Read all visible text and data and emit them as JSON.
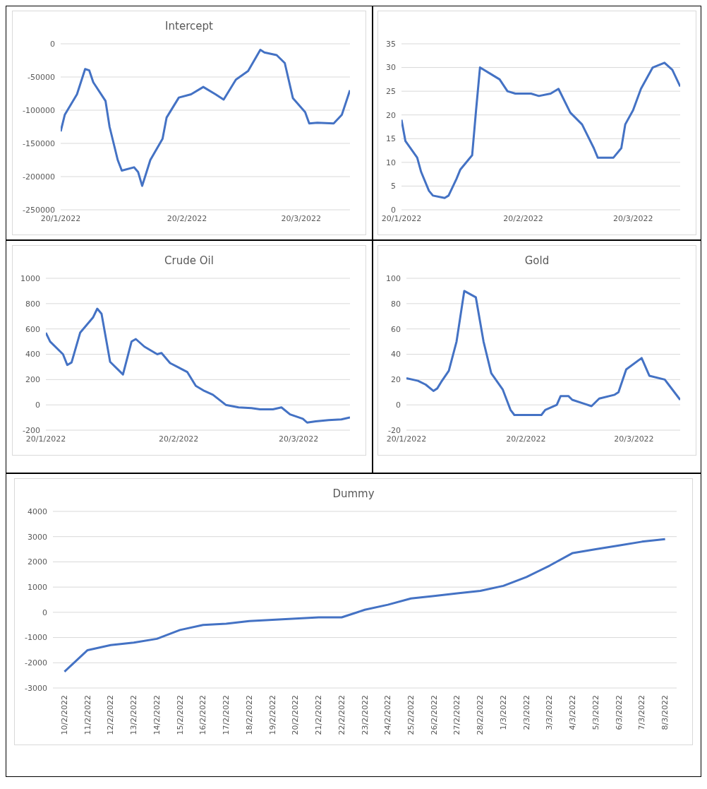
{
  "chart_data": [
    {
      "type": "line",
      "title": "Intercept",
      "x": [
        "2022-01-20",
        "2022-01-21",
        "2022-01-24",
        "2022-01-26",
        "2022-01-27",
        "2022-01-28",
        "2022-01-31",
        "2022-02-01",
        "2022-02-03",
        "2022-02-04",
        "2022-02-07",
        "2022-02-08",
        "2022-02-09",
        "2022-02-11",
        "2022-02-14",
        "2022-02-15",
        "2022-02-18",
        "2022-02-21",
        "2022-02-24",
        "2022-02-27",
        "2022-03-01",
        "2022-03-04",
        "2022-03-07",
        "2022-03-10",
        "2022-03-11",
        "2022-03-14",
        "2022-03-16",
        "2022-03-18",
        "2022-03-21",
        "2022-03-22",
        "2022-03-24",
        "2022-03-28",
        "2022-03-30",
        "2022-04-01"
      ],
      "series": [
        {
          "color": "#4472c4",
          "values": [
            -132000,
            -107000,
            -76000,
            -38000,
            -40000,
            -58000,
            -86000,
            -125000,
            -175000,
            -191000,
            -186000,
            -193000,
            -214000,
            -175000,
            -143000,
            -111000,
            -81000,
            -76000,
            -65000,
            -76000,
            -84000,
            -54000,
            -41000,
            -9000,
            -13000,
            -17000,
            -29000,
            -82000,
            -103000,
            -120000,
            -119000,
            -120000,
            -107000,
            -70000
          ]
        }
      ],
      "xlim": [
        "2022-01-20",
        "2022-04-01"
      ],
      "xticks": [
        {
          "value": "2022-01-20",
          "label": "20/1/2022"
        },
        {
          "value": "2022-02-20",
          "label": "20/2/2022"
        },
        {
          "value": "2022-03-20",
          "label": "20/3/2022"
        }
      ],
      "ylim": [
        -250000,
        0
      ],
      "yticks": [
        -250000,
        -200000,
        -150000,
        -100000,
        -50000,
        0
      ],
      "grid": "y"
    },
    {
      "type": "line",
      "x": [
        "2022-01-20",
        "2022-01-21",
        "2022-01-24",
        "2022-01-25",
        "2022-01-27",
        "2022-01-28",
        "2022-01-31",
        "2022-02-01",
        "2022-02-03",
        "2022-02-04",
        "2022-02-07",
        "2022-02-08",
        "2022-02-09",
        "2022-02-12",
        "2022-02-14",
        "2022-02-16",
        "2022-02-18",
        "2022-02-22",
        "2022-02-24",
        "2022-02-27",
        "2022-03-01",
        "2022-03-04",
        "2022-03-07",
        "2022-03-10",
        "2022-03-11",
        "2022-03-15",
        "2022-03-17",
        "2022-03-18",
        "2022-03-20",
        "2022-03-22",
        "2022-03-25",
        "2022-03-28",
        "2022-03-30",
        "2022-04-01"
      ],
      "series": [
        {
          "color": "#4472c4",
          "values": [
            19,
            14.5,
            11,
            8,
            4,
            3,
            2.5,
            3,
            6.5,
            8.5,
            11.5,
            21,
            30,
            28.5,
            27.5,
            25,
            24.5,
            24.5,
            24,
            24.5,
            25.5,
            20.5,
            18,
            13,
            11,
            11,
            13,
            18,
            21,
            25.5,
            30,
            31,
            29.5,
            26
          ]
        }
      ],
      "xlim": [
        "2022-01-20",
        "2022-04-01"
      ],
      "xticks": [
        {
          "value": "2022-01-20",
          "label": "20/1/2022"
        },
        {
          "value": "2022-02-20",
          "label": "20/2/2022"
        },
        {
          "value": "2022-03-20",
          "label": "20/3/2022"
        }
      ],
      "ylim": [
        0,
        35
      ],
      "yticks": [
        0,
        5,
        10,
        15,
        20,
        25,
        30,
        35
      ],
      "grid": "y"
    },
    {
      "type": "line",
      "title": "Crude Oil",
      "x": [
        "2022-01-20",
        "2022-01-21",
        "2022-01-24",
        "2022-01-25",
        "2022-01-26",
        "2022-01-28",
        "2022-01-31",
        "2022-02-01",
        "2022-02-02",
        "2022-02-04",
        "2022-02-07",
        "2022-02-09",
        "2022-02-10",
        "2022-02-12",
        "2022-02-15",
        "2022-02-16",
        "2022-02-18",
        "2022-02-22",
        "2022-02-24",
        "2022-02-26",
        "2022-02-28",
        "2022-03-03",
        "2022-03-06",
        "2022-03-09",
        "2022-03-11",
        "2022-03-14",
        "2022-03-16",
        "2022-03-18",
        "2022-03-21",
        "2022-03-22",
        "2022-03-24",
        "2022-03-27",
        "2022-03-30",
        "2022-04-01"
      ],
      "series": [
        {
          "color": "#4472c4",
          "values": [
            570,
            500,
            400,
            315,
            335,
            570,
            690,
            760,
            720,
            340,
            240,
            500,
            520,
            460,
            400,
            410,
            330,
            260,
            150,
            110,
            80,
            0,
            -20,
            -25,
            -35,
            -35,
            -20,
            -75,
            -110,
            -140,
            -130,
            -120,
            -115,
            -100
          ]
        }
      ],
      "xlim": [
        "2022-01-20",
        "2022-04-01"
      ],
      "xticks": [
        {
          "value": "2022-01-20",
          "label": "20/1/2022"
        },
        {
          "value": "2022-02-20",
          "label": "20/2/2022"
        },
        {
          "value": "2022-03-20",
          "label": "20/3/2022"
        }
      ],
      "ylim": [
        -200,
        1000
      ],
      "yticks": [
        -200,
        0,
        200,
        400,
        600,
        800,
        1000
      ],
      "grid": "y"
    },
    {
      "type": "line",
      "title": "Gold",
      "x": [
        "2022-01-20",
        "2022-01-23",
        "2022-01-25",
        "2022-01-27",
        "2022-01-28",
        "2022-01-29",
        "2022-01-31",
        "2022-02-02",
        "2022-02-04",
        "2022-02-07",
        "2022-02-09",
        "2022-02-11",
        "2022-02-14",
        "2022-02-16",
        "2022-02-17",
        "2022-02-24",
        "2022-02-25",
        "2022-02-28",
        "2022-03-01",
        "2022-03-03",
        "2022-03-04",
        "2022-03-07",
        "2022-03-09",
        "2022-03-11",
        "2022-03-15",
        "2022-03-16",
        "2022-03-18",
        "2022-03-22",
        "2022-03-24",
        "2022-03-28",
        "2022-03-29",
        "2022-04-01"
      ],
      "series": [
        {
          "color": "#4472c4",
          "values": [
            21,
            19,
            16,
            11,
            13,
            18,
            27,
            50,
            90,
            85,
            50,
            25,
            12,
            -4,
            -8,
            -8,
            -4,
            0,
            7,
            7,
            4,
            1,
            -1,
            5,
            8,
            10,
            28,
            37,
            23,
            20,
            16,
            4
          ]
        }
      ],
      "xlim": [
        "2022-01-20",
        "2022-04-01"
      ],
      "xticks": [
        {
          "value": "2022-01-20",
          "label": "20/1/2022"
        },
        {
          "value": "2022-02-20",
          "label": "20/2/2022"
        },
        {
          "value": "2022-03-20",
          "label": "20/3/2022"
        }
      ],
      "ylim": [
        -20,
        100
      ],
      "yticks": [
        -20,
        0,
        20,
        40,
        60,
        80,
        100
      ],
      "grid": "y"
    },
    {
      "type": "line",
      "title": "Dummy",
      "categories": [
        "10/2/2022",
        "11/2/2022",
        "12/2/2022",
        "13/2/2022",
        "14/2/2022",
        "15/2/2022",
        "16/2/2022",
        "17/2/2022",
        "18/2/2022",
        "19/2/2022",
        "20/2/2022",
        "21/2/2022",
        "22/2/2022",
        "23/2/2022",
        "24/2/2022",
        "25/2/2022",
        "26/2/2022",
        "27/2/2022",
        "28/2/2022",
        "1/3/2022",
        "2/3/2022",
        "3/3/2022",
        "4/3/2022",
        "5/3/2022",
        "6/3/2022",
        "7/3/2022",
        "8/3/2022"
      ],
      "series": [
        {
          "color": "#4472c4",
          "values": [
            -2350,
            -1500,
            -1300,
            -1200,
            -1050,
            -700,
            -500,
            -450,
            -350,
            -300,
            -250,
            -200,
            -200,
            100,
            300,
            550,
            650,
            750,
            850,
            1050,
            1400,
            1850,
            2350,
            2500,
            2650,
            2800,
            2900
          ]
        }
      ],
      "ylim": [
        -3000,
        4000
      ],
      "yticks": [
        -3000,
        -2000,
        -1000,
        0,
        1000,
        2000,
        3000,
        4000
      ],
      "grid": "y"
    }
  ]
}
